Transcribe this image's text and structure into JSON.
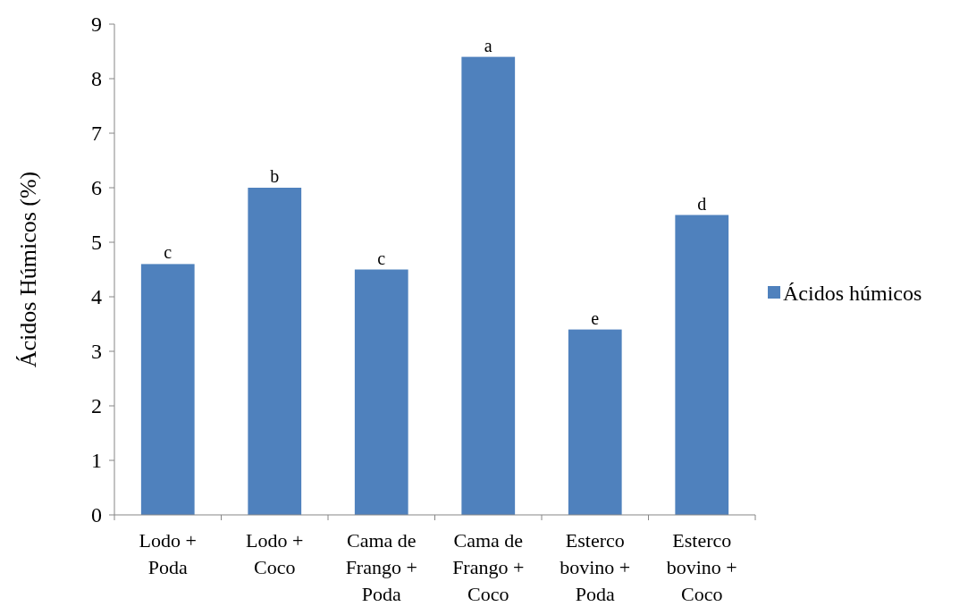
{
  "chart_data": {
    "type": "bar",
    "ylabel": "Ácidos Húmicos (%)",
    "categories": [
      "Lodo + Poda",
      "Lodo + Coco",
      "Cama de Frango + Poda",
      "Cama de Frango + Coco",
      "Esterco bovino + Poda",
      "Esterco bovino + Coco"
    ],
    "series": [
      {
        "name": "Ácidos húmicos",
        "color": "#4f81bd",
        "values": [
          4.6,
          6.0,
          4.5,
          8.4,
          3.4,
          5.5
        ]
      }
    ],
    "ylim": [
      0,
      9
    ],
    "yticks": [
      0,
      1,
      2,
      3,
      4,
      5,
      6,
      7,
      8,
      9
    ],
    "grid": false,
    "legend": "right",
    "annotations": [
      {
        "text": "c",
        "x": "Lodo + Poda",
        "y": 4.6
      },
      {
        "text": "b",
        "x": "Lodo + Coco",
        "y": 6.0
      },
      {
        "text": "c",
        "x": "Cama de Frango + Poda",
        "y": 4.5
      },
      {
        "text": "a",
        "x": "Cama de Frango + Coco",
        "y": 8.4
      },
      {
        "text": "e",
        "x": "Esterco bovino + Poda",
        "y": 3.4
      },
      {
        "text": "d",
        "x": "Esterco bovino + Coco",
        "y": 5.5
      }
    ]
  }
}
